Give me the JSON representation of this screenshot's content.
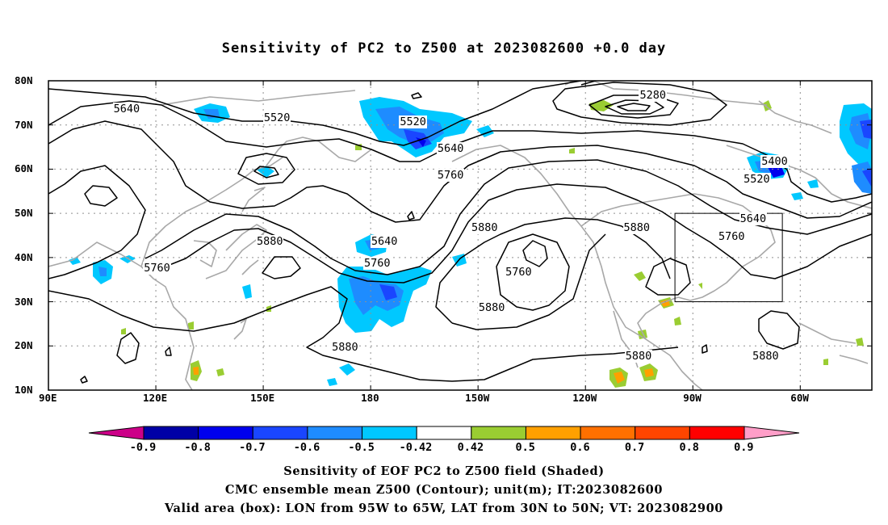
{
  "title": "Sensitivity of PC2 to Z500 at 2023082600 +0.0 day",
  "axes": {
    "lat_labels": [
      "80N",
      "70N",
      "60N",
      "50N",
      "40N",
      "30N",
      "20N",
      "10N"
    ],
    "lon_labels": [
      "90E",
      "120E",
      "150E",
      "180",
      "150W",
      "120W",
      "90W",
      "60W"
    ]
  },
  "contours": {
    "labels": [
      {
        "text": "5280",
        "lon": -101,
        "lat": 76.5
      },
      {
        "text": "5400",
        "lon": -67,
        "lat": 61.5
      },
      {
        "text": "5520",
        "lon": 154,
        "lat": 71.5
      },
      {
        "text": "5520",
        "lon": -168,
        "lat": 70.5
      },
      {
        "text": "5520",
        "lon": -72,
        "lat": 57.5
      },
      {
        "text": "5640",
        "lon": 112,
        "lat": 73.5
      },
      {
        "text": "5640",
        "lon": -157.5,
        "lat": 64.5
      },
      {
        "text": "5640",
        "lon": -176,
        "lat": 43.5
      },
      {
        "text": "5640",
        "lon": -73,
        "lat": 48.5
      },
      {
        "text": "5760",
        "lon": -157.5,
        "lat": 58.5
      },
      {
        "text": "5760",
        "lon": 120.5,
        "lat": 37.5
      },
      {
        "text": "5760",
        "lon": -178,
        "lat": 38.5
      },
      {
        "text": "5760",
        "lon": -138.5,
        "lat": 36.5
      },
      {
        "text": "5760",
        "lon": -79,
        "lat": 44.5
      },
      {
        "text": "5880",
        "lon": 152,
        "lat": 43.5
      },
      {
        "text": "5880",
        "lon": -148,
        "lat": 46.5
      },
      {
        "text": "5880",
        "lon": -105.5,
        "lat": 46.5
      },
      {
        "text": "5880",
        "lon": -146,
        "lat": 28.5
      },
      {
        "text": "5880",
        "lon": 173,
        "lat": 19.5
      },
      {
        "text": "5880",
        "lon": -105,
        "lat": 17.5
      },
      {
        "text": "5880",
        "lon": -69.5,
        "lat": 17.5
      }
    ]
  },
  "colorbar": {
    "labels": [
      "-0.9",
      "-0.8",
      "-0.7",
      "-0.6",
      "-0.5",
      "-0.42",
      "0.42",
      "0.5",
      "0.6",
      "0.7",
      "0.8",
      "0.9"
    ],
    "colors": [
      "#0000a6",
      "#0000ee",
      "#1a46ff",
      "#1e8cff",
      "#00c8ff",
      "#ffffff",
      "#9acd32",
      "#ffa000",
      "#ff7000",
      "#ff4500",
      "#ff0000"
    ],
    "low_color": "#cc0088",
    "high_color": "#ff9ec8"
  },
  "box": {
    "lon_min": -95,
    "lon_max": -65,
    "lat_min": 30,
    "lat_max": 50
  },
  "captions": [
    "Sensitivity of EOF PC2 to Z500 field (Shaded)",
    "CMC ensemble mean Z500 (Contour); unit(m); IT:2023082600",
    "Valid area (box): LON from 95W to 65W, LAT from 30N to 50N; VT: 2023082900"
  ]
}
